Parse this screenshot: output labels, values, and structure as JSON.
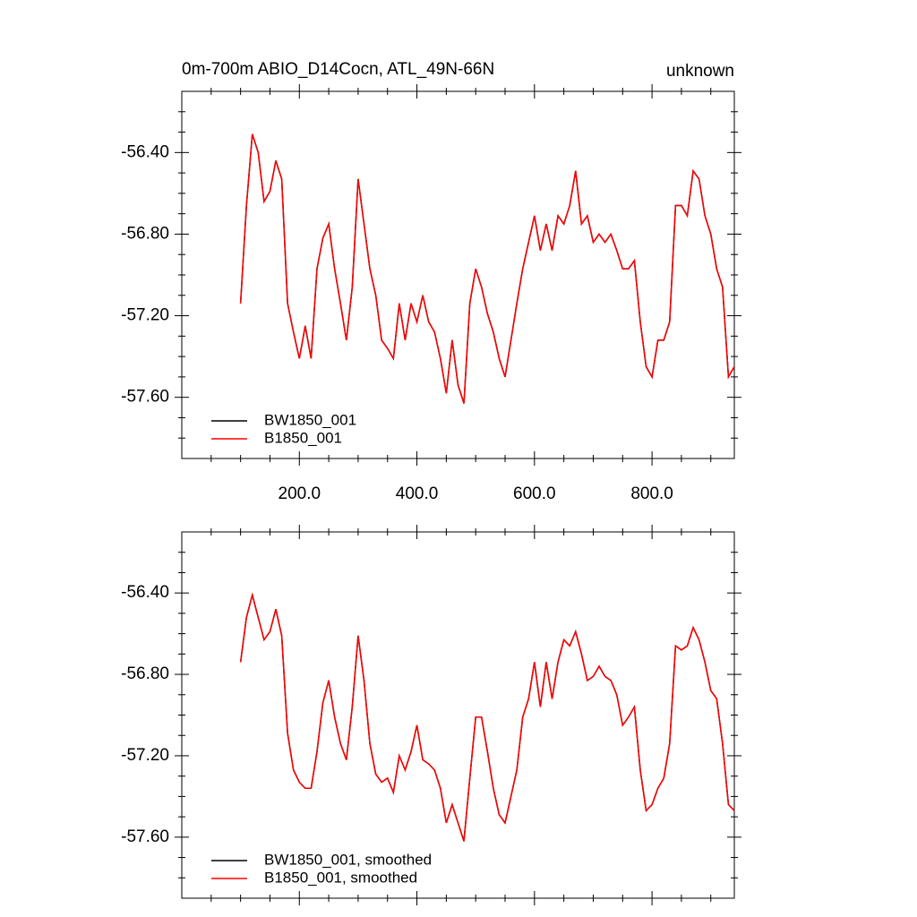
{
  "chart_data": [
    {
      "type": "line",
      "title": "0m-700m ABIO_D14Cocn, ATL_49N-66N",
      "right_title": "unknown",
      "x": [
        100,
        110,
        120,
        130,
        140,
        150,
        160,
        170,
        180,
        190,
        200,
        210,
        220,
        230,
        240,
        250,
        260,
        270,
        280,
        290,
        300,
        310,
        320,
        330,
        340,
        350,
        360,
        370,
        380,
        390,
        400,
        410,
        420,
        430,
        440,
        450,
        460,
        470,
        480,
        490,
        500,
        510,
        520,
        530,
        540,
        550,
        560,
        570,
        580,
        590,
        600,
        610,
        620,
        630,
        640,
        650,
        660,
        670,
        680,
        690,
        700,
        710,
        720,
        730,
        740,
        750,
        760,
        770,
        780,
        790,
        800,
        810,
        820,
        830,
        840,
        850,
        860,
        870,
        880,
        890,
        900,
        910,
        920,
        930,
        940
      ],
      "series": [
        {
          "name": "BW1850_001",
          "color": "#000000",
          "values": [
            -57.14,
            -56.66,
            -56.31,
            -56.4,
            -56.64,
            -56.59,
            -56.44,
            -56.53,
            -57.14,
            -57.28,
            -57.41,
            -57.25,
            -57.41,
            -56.97,
            -56.82,
            -56.75,
            -56.97,
            -57.14,
            -57.32,
            -57.06,
            -56.53,
            -56.75,
            -56.97,
            -57.1,
            -57.32,
            -57.36,
            -57.41,
            -57.14,
            -57.32,
            -57.14,
            -57.23,
            -57.1,
            -57.23,
            -57.28,
            -57.41,
            -57.58,
            -57.32,
            -57.54,
            -57.63,
            -57.14,
            -56.97,
            -57.06,
            -57.19,
            -57.28,
            -57.41,
            -57.5,
            -57.32,
            -57.14,
            -56.97,
            -56.84,
            -56.71,
            -56.88,
            -56.75,
            -56.88,
            -56.71,
            -56.75,
            -56.66,
            -56.49,
            -56.75,
            -56.71,
            -56.84,
            -56.8,
            -56.84,
            -56.8,
            -56.88,
            -56.97,
            -56.97,
            -56.93,
            -57.23,
            -57.45,
            -57.5,
            -57.32,
            -57.32,
            -57.23,
            -56.66,
            -56.66,
            -56.71,
            -56.49,
            -56.53,
            -56.71,
            -56.8,
            -56.97,
            -57.06,
            -57.5,
            -57.45
          ]
        },
        {
          "name": "B1850_001",
          "color": "#ff0000",
          "values": [
            -57.14,
            -56.66,
            -56.31,
            -56.4,
            -56.64,
            -56.59,
            -56.44,
            -56.53,
            -57.14,
            -57.28,
            -57.41,
            -57.25,
            -57.41,
            -56.97,
            -56.82,
            -56.75,
            -56.97,
            -57.14,
            -57.32,
            -57.06,
            -56.53,
            -56.75,
            -56.97,
            -57.1,
            -57.32,
            -57.36,
            -57.41,
            -57.14,
            -57.32,
            -57.14,
            -57.23,
            -57.1,
            -57.23,
            -57.28,
            -57.41,
            -57.58,
            -57.32,
            -57.54,
            -57.63,
            -57.14,
            -56.97,
            -57.06,
            -57.19,
            -57.28,
            -57.41,
            -57.5,
            -57.32,
            -57.14,
            -56.97,
            -56.84,
            -56.71,
            -56.88,
            -56.75,
            -56.88,
            -56.71,
            -56.75,
            -56.66,
            -56.49,
            -56.75,
            -56.71,
            -56.84,
            -56.8,
            -56.84,
            -56.8,
            -56.88,
            -56.97,
            -56.97,
            -56.93,
            -57.23,
            -57.45,
            -57.5,
            -57.32,
            -57.32,
            -57.23,
            -56.66,
            -56.66,
            -56.71,
            -56.49,
            -56.53,
            -56.71,
            -56.8,
            -56.97,
            -57.06,
            -57.5,
            -57.45
          ]
        }
      ],
      "xlim": [
        0,
        940
      ],
      "xticks": [
        {
          "value": 200,
          "label": "200.0"
        },
        {
          "value": 400,
          "label": "400.0"
        },
        {
          "value": 600,
          "label": "600.0"
        },
        {
          "value": 800,
          "label": "800.0"
        }
      ],
      "xminor_ticks": [
        50,
        100,
        150,
        250,
        300,
        350,
        450,
        500,
        550,
        650,
        700,
        750,
        850,
        900
      ],
      "ylim": [
        -57.9,
        -56.1
      ],
      "yticks": [
        {
          "value": -56.4,
          "label": "-56.40"
        },
        {
          "value": -56.8,
          "label": "-56.80"
        },
        {
          "value": -57.2,
          "label": "-57.20"
        },
        {
          "value": -57.6,
          "label": "-57.60"
        }
      ],
      "yminor_ticks": [
        -56.2,
        -56.3,
        -56.5,
        -56.6,
        -56.7,
        -56.9,
        -57.0,
        -57.1,
        -57.3,
        -57.4,
        -57.5,
        -57.7,
        -57.8
      ],
      "xtick_labels": true,
      "legend": "lower left"
    },
    {
      "type": "line",
      "x": [
        100,
        110,
        120,
        130,
        140,
        150,
        160,
        170,
        180,
        190,
        200,
        210,
        220,
        230,
        240,
        250,
        260,
        270,
        280,
        290,
        300,
        310,
        320,
        330,
        340,
        350,
        360,
        370,
        380,
        390,
        400,
        410,
        420,
        430,
        440,
        450,
        460,
        470,
        480,
        490,
        500,
        510,
        520,
        530,
        540,
        550,
        560,
        570,
        580,
        590,
        600,
        610,
        620,
        630,
        640,
        650,
        660,
        670,
        680,
        690,
        700,
        710,
        720,
        730,
        740,
        750,
        760,
        770,
        780,
        790,
        800,
        810,
        820,
        830,
        840,
        850,
        860,
        870,
        880,
        890,
        900,
        910,
        920,
        930,
        940
      ],
      "series": [
        {
          "name": "BW1850_001, smoothed",
          "color": "#000000",
          "values": [
            -56.74,
            -56.52,
            -56.41,
            -56.52,
            -56.63,
            -56.59,
            -56.48,
            -56.61,
            -57.09,
            -57.27,
            -57.33,
            -57.36,
            -57.36,
            -57.18,
            -56.94,
            -56.83,
            -57.01,
            -57.14,
            -57.22,
            -56.96,
            -56.61,
            -56.83,
            -57.14,
            -57.29,
            -57.33,
            -57.31,
            -57.38,
            -57.2,
            -57.27,
            -57.18,
            -57.05,
            -57.22,
            -57.24,
            -57.27,
            -57.36,
            -57.53,
            -57.44,
            -57.53,
            -57.62,
            -57.31,
            -57.01,
            -57.01,
            -57.18,
            -57.36,
            -57.49,
            -57.53,
            -57.4,
            -57.27,
            -57.01,
            -56.92,
            -56.74,
            -56.96,
            -56.74,
            -56.92,
            -56.74,
            -56.63,
            -56.66,
            -56.59,
            -56.7,
            -56.83,
            -56.81,
            -56.76,
            -56.81,
            -56.83,
            -56.9,
            -57.05,
            -57.01,
            -56.96,
            -57.27,
            -57.47,
            -57.44,
            -57.36,
            -57.31,
            -57.14,
            -56.66,
            -56.68,
            -56.66,
            -56.57,
            -56.63,
            -56.74,
            -56.88,
            -56.92,
            -57.14,
            -57.44,
            -57.47
          ]
        },
        {
          "name": "B1850_001, smoothed",
          "color": "#ff0000",
          "values": [
            -56.74,
            -56.52,
            -56.41,
            -56.52,
            -56.63,
            -56.59,
            -56.48,
            -56.61,
            -57.09,
            -57.27,
            -57.33,
            -57.36,
            -57.36,
            -57.18,
            -56.94,
            -56.83,
            -57.01,
            -57.14,
            -57.22,
            -56.96,
            -56.61,
            -56.83,
            -57.14,
            -57.29,
            -57.33,
            -57.31,
            -57.38,
            -57.2,
            -57.27,
            -57.18,
            -57.05,
            -57.22,
            -57.24,
            -57.27,
            -57.36,
            -57.53,
            -57.44,
            -57.53,
            -57.62,
            -57.31,
            -57.01,
            -57.01,
            -57.18,
            -57.36,
            -57.49,
            -57.53,
            -57.4,
            -57.27,
            -57.01,
            -56.92,
            -56.74,
            -56.96,
            -56.74,
            -56.92,
            -56.74,
            -56.63,
            -56.66,
            -56.59,
            -56.7,
            -56.83,
            -56.81,
            -56.76,
            -56.81,
            -56.83,
            -56.9,
            -57.05,
            -57.01,
            -56.96,
            -57.27,
            -57.47,
            -57.44,
            -57.36,
            -57.31,
            -57.14,
            -56.66,
            -56.68,
            -56.66,
            -56.57,
            -56.63,
            -56.74,
            -56.88,
            -56.92,
            -57.14,
            -57.44,
            -57.47
          ]
        }
      ],
      "xlim": [
        0,
        940
      ],
      "xticks": [
        200,
        400,
        600,
        800
      ],
      "xminor_ticks": [
        50,
        100,
        150,
        250,
        300,
        350,
        450,
        500,
        550,
        650,
        700,
        750,
        850,
        900
      ],
      "ylim": [
        -57.9,
        -56.1
      ],
      "yticks": [
        {
          "value": -56.4,
          "label": "-56.40"
        },
        {
          "value": -56.8,
          "label": "-56.80"
        },
        {
          "value": -57.2,
          "label": "-57.20"
        },
        {
          "value": -57.6,
          "label": "-57.60"
        }
      ],
      "yminor_ticks": [
        -56.2,
        -56.3,
        -56.5,
        -56.6,
        -56.7,
        -56.9,
        -57.0,
        -57.1,
        -57.3,
        -57.4,
        -57.5,
        -57.7,
        -57.8
      ],
      "xtick_labels": false,
      "legend": "lower left"
    }
  ]
}
